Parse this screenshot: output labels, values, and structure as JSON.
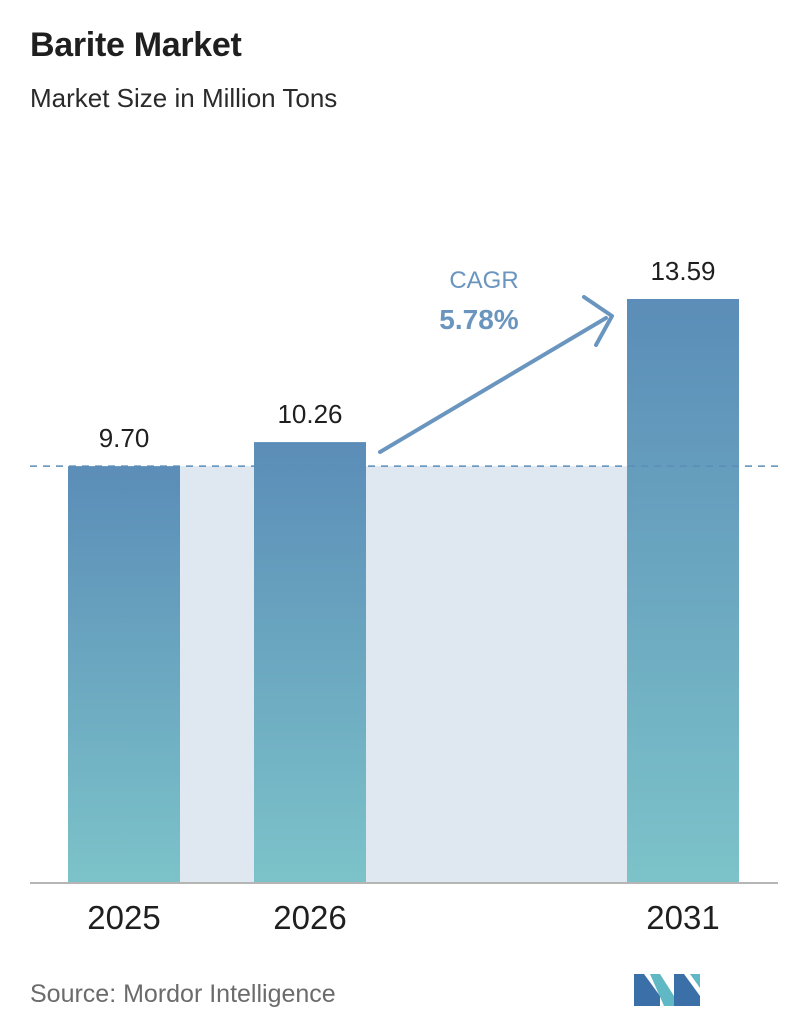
{
  "header": {
    "title": "Barite Market",
    "subtitle": "Market Size in Million Tons"
  },
  "chart_data": {
    "type": "bar",
    "title": "Barite Market",
    "subtitle": "Market Size in Million Tons",
    "categories": [
      "2025",
      "2026",
      "2031"
    ],
    "values": [
      9.7,
      10.26,
      13.59
    ],
    "value_labels": [
      "9.70",
      "10.26",
      "13.59"
    ],
    "ylim": [
      0,
      13.59
    ],
    "grid": false,
    "legend": "none",
    "annotation": {
      "label": "CAGR",
      "value": "5.78%"
    }
  },
  "footer": {
    "source": "Source:  Mordor Intelligence",
    "logo_icon": "mordor-intelligence-logo-icon"
  },
  "colors": {
    "bar_top": "#5b8db8",
    "bar_bottom": "#7cc3c9",
    "band": "#dfe8f1",
    "arrow": "#6a95bf",
    "baseline_dashed": "#5b8db8",
    "axis": "#b5b5b5"
  }
}
